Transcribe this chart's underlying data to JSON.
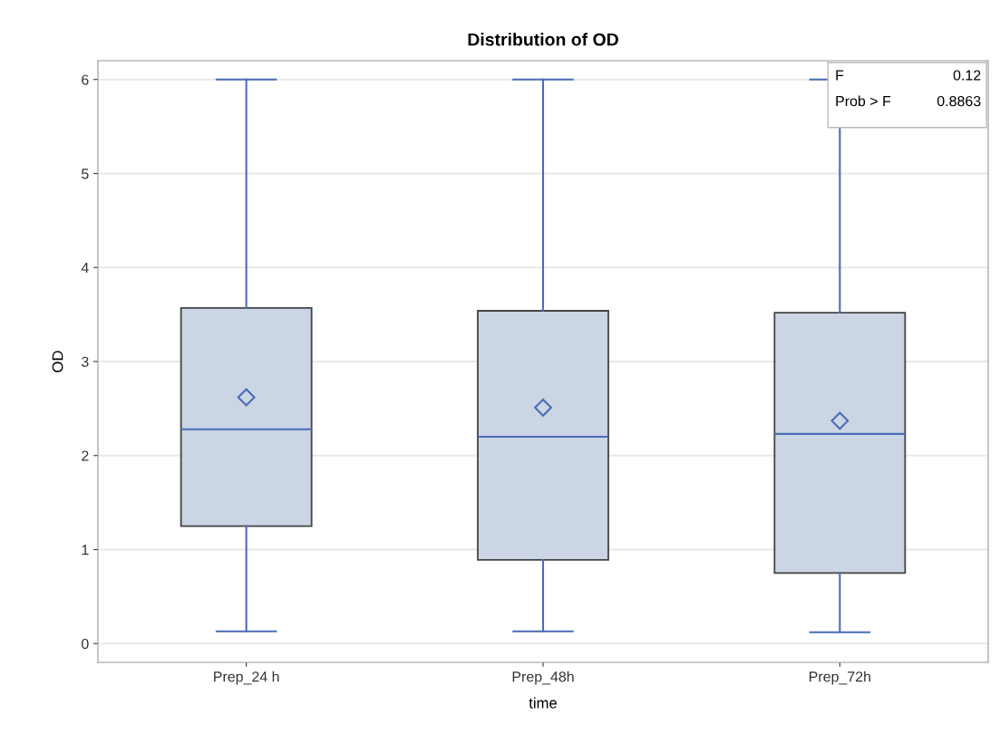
{
  "chart_data": {
    "type": "box",
    "title": "Distribution of OD",
    "xlabel": "time",
    "ylabel": "OD",
    "categories": [
      "Prep_24 h",
      "Prep_48h",
      "Prep_72h"
    ],
    "boxes": [
      {
        "low": 0.13,
        "q1": 1.25,
        "median": 2.28,
        "q3": 3.57,
        "high": 6,
        "mean": 2.62
      },
      {
        "low": 0.13,
        "q1": 0.89,
        "median": 2.2,
        "q3": 3.54,
        "high": 6,
        "mean": 2.51
      },
      {
        "low": 0.12,
        "q1": 0.75,
        "median": 2.23,
        "q3": 3.52,
        "high": 6,
        "mean": 2.37
      }
    ],
    "color": "#cbd5e3",
    "ylim": [
      -0.2,
      6.2
    ],
    "yticks": [
      0,
      1,
      2,
      3,
      4,
      5,
      6
    ],
    "grid": "y",
    "marker": "diamond",
    "annotations": [
      "F",
      "0.12",
      "Prob > F",
      "0.8863"
    ]
  }
}
